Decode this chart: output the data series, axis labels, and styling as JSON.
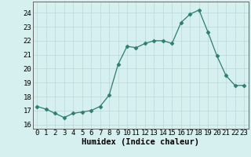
{
  "x": [
    0,
    1,
    2,
    3,
    4,
    5,
    6,
    7,
    8,
    9,
    10,
    11,
    12,
    13,
    14,
    15,
    16,
    17,
    18,
    19,
    20,
    21,
    22,
    23
  ],
  "y": [
    17.3,
    17.1,
    16.8,
    16.5,
    16.8,
    16.9,
    17.0,
    17.3,
    18.1,
    20.3,
    21.6,
    21.5,
    21.8,
    22.0,
    22.0,
    21.8,
    23.3,
    23.9,
    24.2,
    22.6,
    20.9,
    19.5,
    18.8,
    18.8
  ],
  "line_color": "#2e7d6e",
  "marker": "D",
  "marker_size": 2.5,
  "bg_color": "#d6f0f0",
  "grid_color": "#b8d8d8",
  "xlabel": "Humidex (Indice chaleur)",
  "xlim": [
    -0.5,
    23.5
  ],
  "ylim": [
    15.7,
    24.8
  ],
  "yticks": [
    16,
    17,
    18,
    19,
    20,
    21,
    22,
    23,
    24
  ],
  "xticks": [
    0,
    1,
    2,
    3,
    4,
    5,
    6,
    7,
    8,
    9,
    10,
    11,
    12,
    13,
    14,
    15,
    16,
    17,
    18,
    19,
    20,
    21,
    22,
    23
  ],
  "xlabel_fontsize": 7.5,
  "tick_fontsize": 6.5
}
